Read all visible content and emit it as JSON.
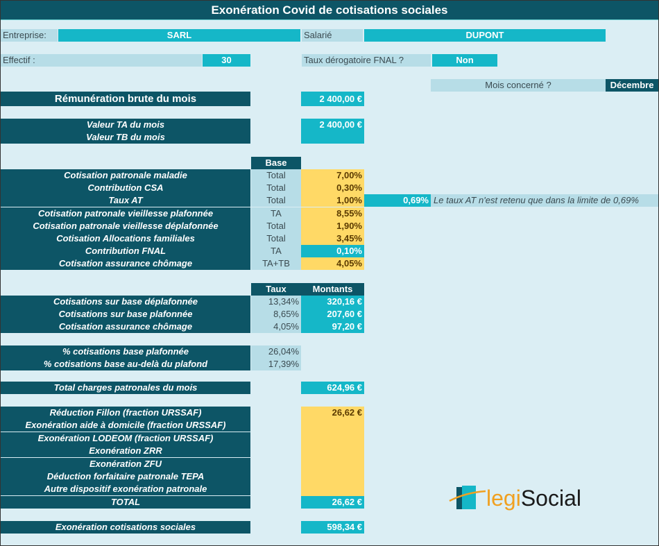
{
  "title": "Exonération Covid de cotisations sociales",
  "entreprise": {
    "label": "Entreprise:",
    "value": "SARL"
  },
  "salarie": {
    "label": "Salarié",
    "value": "DUPONT"
  },
  "effectif": {
    "label": "Effectif :",
    "value": "30"
  },
  "fnal": {
    "label": "Taux dérogatoire FNAL ?",
    "value": "Non"
  },
  "mois": {
    "label": "Mois concerné ?",
    "value": "Décembre"
  },
  "remuneration": {
    "label": "Rémunération brute du mois",
    "value": "2 400,00 €"
  },
  "ta": {
    "label": "Valeur TA du mois",
    "value": "2 400,00 €"
  },
  "tb": {
    "label": "Valeur TB du mois",
    "value": ""
  },
  "cotisations": {
    "header": "Base",
    "rows": [
      {
        "label": "Cotisation patronale maladie",
        "base": "Total",
        "rate": "7,00%"
      },
      {
        "label": "Contribution CSA",
        "base": "Total",
        "rate": "0,30%"
      },
      {
        "label": "Taux AT",
        "base": "Total",
        "rate": "1,00%"
      },
      {
        "label": "Cotisation patronale vieillesse plafonnée",
        "base": "TA",
        "rate": "8,55%"
      },
      {
        "label": "Cotisation patronale vieillesse déplafonnée",
        "base": "Total",
        "rate": "1,90%"
      },
      {
        "label": "Cotisation Allocations familiales",
        "base": "Total",
        "rate": "3,45%"
      },
      {
        "label": "Contribution FNAL",
        "base": "TA",
        "rate": "0,10%"
      },
      {
        "label": "Cotisation assurance chômage",
        "base": "TA+TB",
        "rate": "4,05%"
      }
    ]
  },
  "at_limit": {
    "value": "0,69%",
    "note": "Le taux AT n'est retenu que dans la limite de 0,69%"
  },
  "bases": {
    "taux_header": "Taux",
    "montants_header": "Montants",
    "rows": [
      {
        "label": "Cotisations sur base déplafonnée",
        "taux": "13,34%",
        "montant": "320,16 €"
      },
      {
        "label": "Cotisations sur base plafonnée",
        "taux": "8,65%",
        "montant": "207,60 €"
      },
      {
        "label": "Cotisation assurance chômage",
        "taux": "4,05%",
        "montant": "97,20 €"
      }
    ]
  },
  "pct": [
    {
      "label": "% cotisations base plafonnée",
      "value": "26,04%"
    },
    {
      "label": "% cotisations base au-delà du plafond",
      "value": "17,39%"
    }
  ],
  "total_charges": {
    "label": "Total charges patronales du mois",
    "value": "624,96 €"
  },
  "exonerations": [
    {
      "label": "Réduction Fillon (fraction URSSAF)",
      "value": "26,62 €"
    },
    {
      "label": "Exonération aide à domicile (fraction URSSAF)",
      "value": ""
    },
    {
      "label": "Exonération LODEOM (fraction URSSAF)",
      "value": ""
    },
    {
      "label": "Exonération ZRR",
      "value": ""
    },
    {
      "label": "Exonération ZFU",
      "value": ""
    },
    {
      "label": "Déduction forfaitaire patronale TEPA",
      "value": ""
    },
    {
      "label": "Autre dispositif exonération patronale",
      "value": ""
    },
    {
      "label": "TOTAL",
      "value": "26,62 €"
    }
  ],
  "exoneration_finale": {
    "label": "Exonération cotisations sociales",
    "value": "598,34 €"
  },
  "logo": {
    "part1": "legi",
    "part2": "Social"
  }
}
